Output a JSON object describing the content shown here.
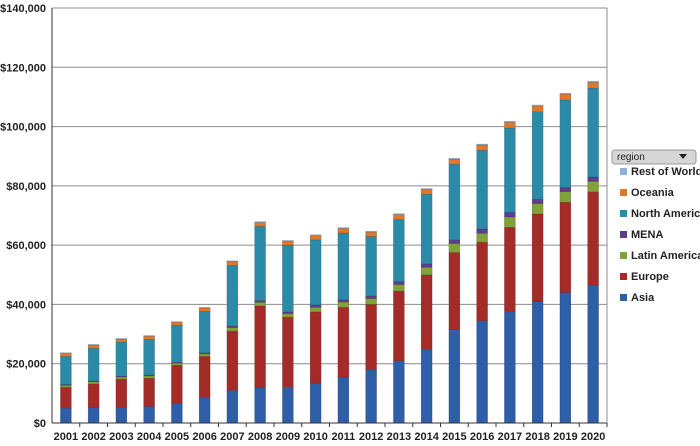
{
  "chart_data": {
    "type": "bar",
    "stacked": true,
    "categories": [
      "2001",
      "2002",
      "2003",
      "2004",
      "2005",
      "2006",
      "2007",
      "2008",
      "2009",
      "2010",
      "2011",
      "2012",
      "2013",
      "2014",
      "2015",
      "2016",
      "2017",
      "2018",
      "2019",
      "2020"
    ],
    "series": [
      {
        "name": "Asia",
        "color": "#2e5ea8",
        "values": [
          5000,
          5200,
          5300,
          5600,
          6500,
          8500,
          11000,
          12000,
          12200,
          13500,
          15500,
          18000,
          21000,
          25000,
          31500,
          34500,
          37500,
          41000,
          44000,
          46500
        ]
      },
      {
        "name": "Europe",
        "color": "#a32b28",
        "values": [
          7000,
          8000,
          9500,
          9500,
          13000,
          14000,
          20000,
          27500,
          23500,
          24000,
          23500,
          22000,
          23500,
          25000,
          26000,
          26500,
          28500,
          29500,
          30500,
          31500
        ]
      },
      {
        "name": "Latin America",
        "color": "#7fa33a",
        "values": [
          700,
          700,
          700,
          800,
          700,
          800,
          1200,
          1200,
          1200,
          1500,
          1800,
          2000,
          2200,
          2500,
          3000,
          3000,
          3500,
          3500,
          3500,
          3500
        ]
      },
      {
        "name": "MENA",
        "color": "#5c3d8f",
        "values": [
          300,
          300,
          300,
          300,
          300,
          400,
          500,
          600,
          600,
          800,
          800,
          900,
          1000,
          1200,
          1300,
          1500,
          1500,
          1500,
          1500,
          1500
        ]
      },
      {
        "name": "North America",
        "color": "#2b8aa7",
        "values": [
          9500,
          11000,
          11500,
          12000,
          12500,
          14000,
          20500,
          25000,
          22500,
          22000,
          22500,
          20000,
          21000,
          23500,
          25500,
          26500,
          28500,
          29500,
          29500,
          30000
        ]
      },
      {
        "name": "Oceania",
        "color": "#e07828",
        "values": [
          1000,
          1100,
          1000,
          1100,
          1000,
          1100,
          1300,
          1300,
          1300,
          1400,
          1500,
          1500,
          1600,
          1600,
          1700,
          1800,
          1900,
          1900,
          1900,
          1900
        ]
      },
      {
        "name": "Rest of World",
        "color": "#8eaedb",
        "values": [
          200,
          200,
          200,
          200,
          200,
          200,
          200,
          300,
          300,
          300,
          300,
          300,
          300,
          300,
          300,
          300,
          400,
          400,
          400,
          400
        ]
      }
    ],
    "ylim": [
      0,
      140000
    ],
    "yticks": [
      "$0",
      "$20,000",
      "$40,000",
      "$60,000",
      "$80,000",
      "$100,000",
      "$120,000",
      "$140,000"
    ],
    "grid": true,
    "legend_placement": "right",
    "legend_filter_label": "region"
  }
}
